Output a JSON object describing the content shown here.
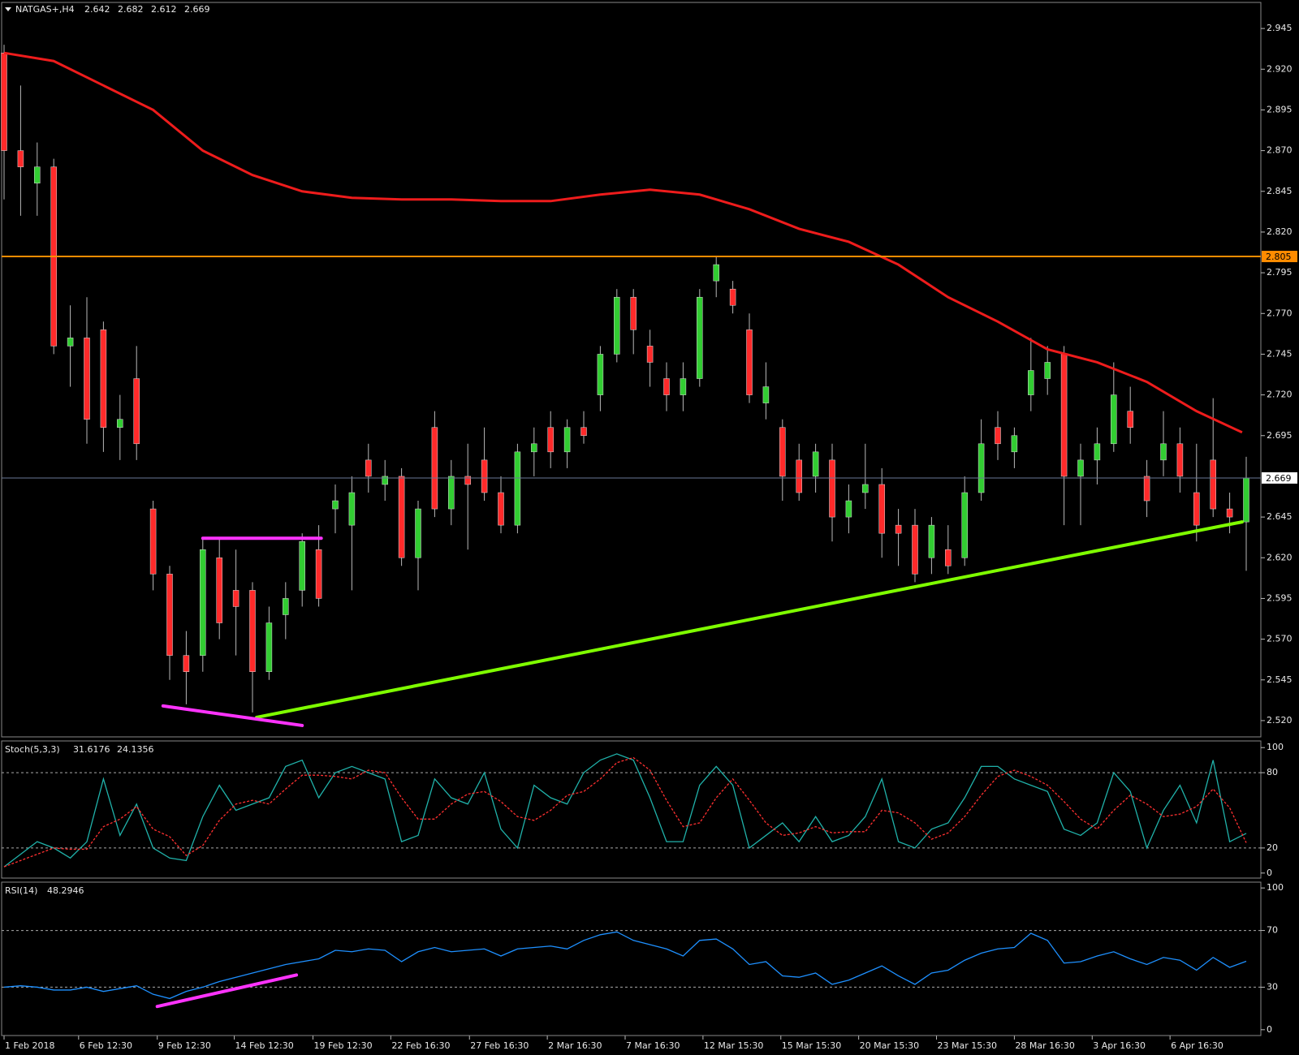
{
  "chart_data": [
    {
      "type": "candlestick",
      "symbol": "NATGAS+,H4",
      "up_color": "#32cd32",
      "down_color": "#ff2a2a",
      "wick_color": "#b8b8b8",
      "ylim": [
        2.51,
        2.961
      ],
      "yticks": [
        2.945,
        {
          "value": 2.92,
          "label": "2.920"
        },
        2.895,
        {
          "value": 2.87,
          "label": "2.870"
        },
        2.845,
        {
          "value": 2.82,
          "label": "2.820"
        },
        2.795,
        {
          "value": 2.77,
          "label": "2.770"
        },
        2.745,
        {
          "value": 2.72,
          "label": "2.720"
        },
        2.695,
        2.645,
        {
          "value": 2.62,
          "label": "2.620"
        },
        2.595,
        {
          "value": 2.57,
          "label": "2.570"
        },
        2.545,
        {
          "value": 2.52,
          "label": "2.520"
        }
      ],
      "xticks": [
        {
          "value": 0,
          "label": "1 Feb 2018"
        },
        {
          "value": 4.5,
          "label": "6 Feb 12:30"
        },
        {
          "value": 9.25,
          "label": "9 Feb 12:30"
        },
        {
          "value": 13.9,
          "label": "14 Feb 12:30"
        },
        {
          "value": 18.65,
          "label": "19 Feb 12:30"
        },
        {
          "value": 23.35,
          "label": "22 Feb 16:30"
        },
        {
          "value": 28.1,
          "label": "27 Feb 16:30"
        },
        {
          "value": 32.8,
          "label": "2 Mar 16:30"
        },
        {
          "value": 37.5,
          "label": "7 Mar 16:30"
        },
        {
          "value": 42.2,
          "label": "12 Mar 15:30"
        },
        {
          "value": 46.9,
          "label": "15 Mar 15:30"
        },
        {
          "value": 51.6,
          "label": "20 Mar 15:30"
        },
        {
          "value": 56.3,
          "label": "23 Mar 15:30"
        },
        {
          "value": 61,
          "label": "28 Mar 16:30"
        },
        {
          "value": 65.7,
          "label": "3 Apr 16:30"
        },
        {
          "value": 70.4,
          "label": "6 Apr 16:30"
        }
      ],
      "candles": [
        [
          2.93,
          2.935,
          2.84,
          2.87
        ],
        [
          2.87,
          2.91,
          2.83,
          2.86
        ],
        [
          2.85,
          2.875,
          2.83,
          2.86
        ],
        [
          2.86,
          2.865,
          2.745,
          2.75
        ],
        [
          2.75,
          2.775,
          2.725,
          2.755
        ],
        [
          2.755,
          2.78,
          2.69,
          2.705
        ],
        [
          2.76,
          2.765,
          2.685,
          2.7
        ],
        [
          2.7,
          2.72,
          2.68,
          2.705
        ],
        [
          2.73,
          2.75,
          2.68,
          2.69
        ],
        [
          2.65,
          2.655,
          2.6,
          2.61
        ],
        [
          2.61,
          2.615,
          2.545,
          2.56
        ],
        [
          2.56,
          2.575,
          2.53,
          2.55
        ],
        [
          2.56,
          2.632,
          2.55,
          2.625
        ],
        [
          2.62,
          2.632,
          2.57,
          2.58
        ],
        [
          2.6,
          2.625,
          2.56,
          2.59
        ],
        [
          2.6,
          2.605,
          2.525,
          2.55
        ],
        [
          2.55,
          2.59,
          2.545,
          2.58
        ],
        [
          2.585,
          2.605,
          2.57,
          2.595
        ],
        [
          2.6,
          2.635,
          2.59,
          2.63
        ],
        [
          2.625,
          2.64,
          2.59,
          2.595
        ],
        [
          2.65,
          2.665,
          2.635,
          2.655
        ],
        [
          2.64,
          2.67,
          2.6,
          2.66
        ],
        [
          2.68,
          2.69,
          2.66,
          2.67
        ],
        [
          2.665,
          2.68,
          2.655,
          2.67
        ],
        [
          2.67,
          2.675,
          2.615,
          2.62
        ],
        [
          2.62,
          2.655,
          2.6,
          2.65
        ],
        [
          2.7,
          2.71,
          2.645,
          2.65
        ],
        [
          2.65,
          2.68,
          2.64,
          2.67
        ],
        [
          2.67,
          2.69,
          2.625,
          2.665
        ],
        [
          2.68,
          2.7,
          2.655,
          2.66
        ],
        [
          2.66,
          2.67,
          2.635,
          2.64
        ],
        [
          2.64,
          2.69,
          2.635,
          2.685
        ],
        [
          2.685,
          2.7,
          2.67,
          2.69
        ],
        [
          2.7,
          2.71,
          2.675,
          2.685
        ],
        [
          2.685,
          2.705,
          2.675,
          2.7
        ],
        [
          2.7,
          2.71,
          2.69,
          2.695
        ],
        [
          2.72,
          2.75,
          2.71,
          2.745
        ],
        [
          2.745,
          2.785,
          2.74,
          2.78
        ],
        [
          2.78,
          2.785,
          2.745,
          2.76
        ],
        [
          2.75,
          2.76,
          2.725,
          2.74
        ],
        [
          2.73,
          2.74,
          2.71,
          2.72
        ],
        [
          2.72,
          2.74,
          2.71,
          2.73
        ],
        [
          2.73,
          2.785,
          2.725,
          2.78
        ],
        [
          2.79,
          2.805,
          2.78,
          2.8
        ],
        [
          2.785,
          2.79,
          2.77,
          2.775
        ],
        [
          2.76,
          2.77,
          2.715,
          2.72
        ],
        [
          2.715,
          2.74,
          2.705,
          2.725
        ],
        [
          2.7,
          2.705,
          2.655,
          2.67
        ],
        [
          2.68,
          2.69,
          2.655,
          2.66
        ],
        [
          2.67,
          2.69,
          2.66,
          2.685
        ],
        [
          2.68,
          2.69,
          2.63,
          2.645
        ],
        [
          2.645,
          2.665,
          2.635,
          2.655
        ],
        [
          2.66,
          2.69,
          2.65,
          2.665
        ],
        [
          2.665,
          2.675,
          2.62,
          2.635
        ],
        [
          2.64,
          2.65,
          2.615,
          2.635
        ],
        [
          2.64,
          2.65,
          2.605,
          2.61
        ],
        [
          2.62,
          2.645,
          2.61,
          2.64
        ],
        [
          2.625,
          2.64,
          2.61,
          2.615
        ],
        [
          2.62,
          2.67,
          2.615,
          2.66
        ],
        [
          2.66,
          2.705,
          2.655,
          2.69
        ],
        [
          2.7,
          2.71,
          2.68,
          2.69
        ],
        [
          2.685,
          2.7,
          2.675,
          2.695
        ],
        [
          2.72,
          2.755,
          2.71,
          2.735
        ],
        [
          2.73,
          2.75,
          2.72,
          2.74
        ],
        [
          2.745,
          2.75,
          2.64,
          2.67
        ],
        [
          2.67,
          2.69,
          2.64,
          2.68
        ],
        [
          2.68,
          2.7,
          2.665,
          2.69
        ],
        [
          2.69,
          2.74,
          2.685,
          2.72
        ],
        [
          2.71,
          2.725,
          2.69,
          2.7
        ],
        [
          2.67,
          2.68,
          2.645,
          2.655
        ],
        [
          2.68,
          2.71,
          2.67,
          2.69
        ],
        [
          2.69,
          2.7,
          2.66,
          2.67
        ],
        [
          2.66,
          2.69,
          2.63,
          2.64
        ],
        [
          2.68,
          2.718,
          2.645,
          2.65
        ],
        [
          2.65,
          2.66,
          2.635,
          2.645
        ],
        [
          2.642,
          2.682,
          2.612,
          2.669
        ]
      ],
      "ma": {
        "color": "#ee1c1c",
        "x": [
          0,
          3,
          6,
          9,
          12,
          15,
          18,
          21,
          24,
          27,
          30,
          33,
          36,
          39,
          42,
          45,
          48,
          51,
          54,
          57,
          60,
          63,
          66,
          69,
          72,
          74.75
        ],
        "values": [
          2.93,
          2.925,
          2.91,
          2.895,
          2.87,
          2.855,
          2.845,
          2.841,
          2.84,
          2.84,
          2.839,
          2.839,
          2.843,
          2.846,
          2.843,
          2.834,
          2.822,
          2.814,
          2.8,
          2.78,
          2.765,
          2.748,
          2.74,
          2.728,
          2.71,
          2.697
        ]
      },
      "levels": [
        {
          "value": 2.805,
          "color": "#ff8c00"
        }
      ],
      "last_color": "#6a7896",
      "trendlines": [
        {
          "color": "#7fff00",
          "x": [
            15.25,
            74.75
          ],
          "y": [
            2.522,
            2.642
          ]
        },
        {
          "color": "#ff33ff",
          "x": [
            9.6,
            18.0
          ],
          "y": [
            2.529,
            2.517
          ]
        },
        {
          "color": "#ff33ff",
          "x": [
            12.0,
            19.15
          ],
          "y": [
            2.632,
            2.632
          ]
        }
      ]
    },
    {
      "type": "line",
      "title": "Stoch(5,3,3)",
      "ylim": [
        -4,
        105.3
      ],
      "yticks": [
        0,
        20,
        80,
        100
      ],
      "levels": [
        20,
        80
      ],
      "series": [
        {
          "color": "#20b2aa",
          "values": [
            5,
            15,
            25,
            20,
            12,
            25,
            75,
            30,
            55,
            20,
            12,
            10,
            45,
            70,
            50,
            55,
            60,
            85,
            90,
            60,
            80,
            85,
            80,
            75,
            25,
            30,
            75,
            60,
            55,
            80,
            35,
            20,
            70,
            60,
            55,
            80,
            90,
            95,
            90,
            60,
            25,
            25,
            70,
            85,
            70,
            20,
            30,
            40,
            25,
            45,
            25,
            30,
            45,
            75,
            25,
            20,
            35,
            40,
            60,
            85,
            85,
            75,
            70,
            65,
            35,
            30,
            40,
            80,
            65,
            20,
            50,
            70,
            40,
            90,
            25,
            31.6176
          ]
        },
        {
          "color": "#ff3030",
          "dashed": true,
          "values": [
            5,
            10,
            15,
            20,
            19,
            19,
            37,
            43,
            53,
            35,
            29,
            14,
            22,
            42,
            55,
            58,
            55,
            67,
            78,
            78,
            77,
            75,
            82,
            80,
            60,
            43,
            43,
            55,
            63,
            65,
            57,
            45,
            42,
            50,
            62,
            65,
            75,
            88,
            92,
            82,
            58,
            37,
            40,
            60,
            75,
            58,
            40,
            30,
            32,
            37,
            32,
            33,
            33,
            50,
            48,
            40,
            27,
            32,
            45,
            62,
            77,
            82,
            77,
            70,
            57,
            43,
            35,
            50,
            62,
            55,
            45,
            47,
            53,
            67,
            52,
            24.1356
          ]
        }
      ]
    },
    {
      "type": "line",
      "title": "RSI(14)",
      "ylim": [
        -4.1,
        104.1
      ],
      "yticks": [
        0,
        30,
        70,
        100
      ],
      "levels": [
        30,
        70
      ],
      "series": [
        {
          "color": "#1e90ff",
          "values": [
            30,
            31,
            30,
            28,
            28,
            30,
            27,
            29,
            31,
            25,
            22,
            27,
            30,
            34,
            37,
            40,
            43,
            46,
            48,
            50,
            56,
            55,
            57,
            56,
            48,
            55,
            58,
            55,
            56,
            57,
            52,
            57,
            58,
            59,
            57,
            63,
            67,
            69,
            63,
            60,
            57,
            52,
            63,
            64,
            57,
            46,
            48,
            38,
            37,
            40,
            32,
            35,
            40,
            45,
            38,
            32,
            40,
            42,
            49,
            54,
            57,
            58,
            68,
            63,
            47,
            48,
            52,
            55,
            50,
            46,
            51,
            49,
            42,
            51,
            44,
            48.2946
          ]
        }
      ],
      "trendlines": [
        {
          "color": "#ff33ff",
          "x": [
            9.25,
            17.65
          ],
          "y": [
            16.4,
            38.6
          ]
        }
      ]
    }
  ]
}
